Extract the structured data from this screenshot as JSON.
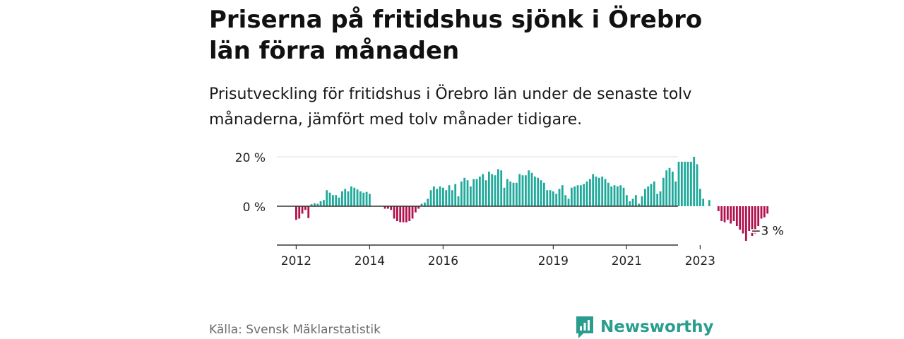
{
  "title": "Priserna på fritidshus sjönk i Örebro län förra månaden",
  "subtitle": "Prisutveckling för fritidshus i Örebro län under de senaste tolv månaderna, jämfört med tolv månader tidigare.",
  "source": "Källa: Svensk Mäklarstatistik",
  "brand": "Newsworthy",
  "colors": {
    "positive": "#1fa99b",
    "negative": "#b0124d",
    "brand": "#2a9d8f",
    "axis": "#333333",
    "grid": "#dddddd"
  },
  "icons": {
    "logo": "newsworthy-logo-icon"
  },
  "chart_data": {
    "type": "bar",
    "title": "",
    "xlabel": "",
    "ylabel": "",
    "ylim": [
      -15,
      20
    ],
    "y_ticks": [
      {
        "value": 0,
        "label": "0 %"
      },
      {
        "value": 20,
        "label": "20 %"
      }
    ],
    "x_ticks": [
      "2012",
      "2014",
      "2016",
      "2019",
      "2021",
      "2023"
    ],
    "grid": true,
    "last_label": "−3 %",
    "series": [
      {
        "name": "",
        "start": "2012-01",
        "values": [
          -5.5,
          -5.0,
          -3.0,
          -1.5,
          -4.8,
          0.8,
          1.2,
          1.0,
          2.0,
          2.5,
          6.5,
          5.5,
          4.5,
          4.5,
          3.5,
          6.0,
          7.0,
          6.0,
          8.0,
          7.5,
          6.8,
          6.0,
          5.5,
          5.8,
          5.0,
          0.0,
          0.0,
          0.0,
          0.0,
          -1.0,
          -1.0,
          -1.5,
          -5.0,
          -6.0,
          -6.5,
          -6.5,
          -6.5,
          -6.0,
          -5.0,
          -2.5,
          -1.0,
          1.0,
          1.5,
          3.0,
          6.5,
          8.0,
          7.0,
          8.0,
          7.5,
          6.5,
          8.5,
          6.5,
          9.0,
          4.0,
          10.0,
          11.5,
          10.5,
          8.0,
          11.0,
          11.0,
          12.0,
          13.0,
          10.5,
          14.0,
          13.0,
          12.5,
          15.0,
          14.5,
          7.5,
          11.0,
          10.0,
          9.5,
          9.5,
          13.0,
          12.5,
          12.5,
          14.5,
          13.5,
          12.0,
          11.5,
          10.5,
          9.5,
          6.5,
          6.5,
          6.0,
          5.0,
          7.0,
          8.5,
          4.5,
          3.0,
          7.5,
          8.0,
          8.5,
          8.5,
          9.0,
          10.0,
          11.0,
          13.0,
          12.0,
          11.5,
          12.0,
          11.0,
          9.5,
          8.0,
          8.5,
          8.0,
          8.5,
          7.5,
          4.5,
          2.0,
          3.0,
          4.5,
          1.0,
          4.0,
          7.0,
          8.0,
          9.0,
          10.0,
          5.0,
          6.0,
          11.5,
          14.5,
          15.5,
          14.0,
          10.0,
          18.0,
          18.0,
          18.0,
          18.0,
          18.0,
          20.0,
          17.0,
          7.0,
          3.0,
          0.0,
          2.5,
          0.0,
          0.0,
          -2.0,
          -6.0,
          -6.5,
          -5.5,
          -7.0,
          -6.0,
          -8.0,
          -9.5,
          -11.0,
          -14.0,
          -10.0,
          -12.0,
          -11.0,
          -8.0,
          -5.0,
          -4.5,
          -3.0
        ]
      }
    ]
  }
}
